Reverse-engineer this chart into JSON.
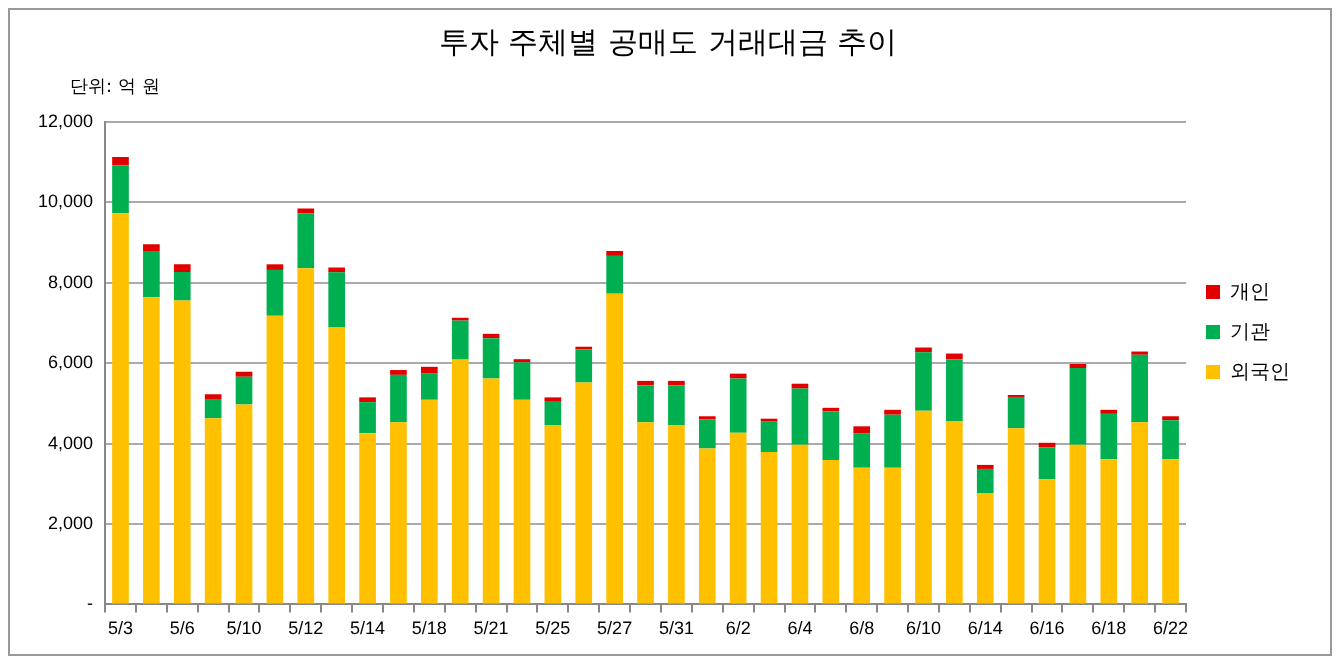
{
  "chart_data": {
    "type": "bar",
    "title": "투자 주체별 공매도 거래대금 추이",
    "annotations": [
      "단위: 억 원"
    ],
    "categories": [
      "5/3",
      null,
      "5/6",
      null,
      "5/10",
      null,
      "5/12",
      null,
      "5/14",
      null,
      "5/18",
      null,
      "5/21",
      null,
      "5/25",
      null,
      "5/27",
      null,
      "5/31",
      null,
      "6/2",
      null,
      "6/4",
      null,
      "6/8",
      null,
      "6/10",
      null,
      "6/14",
      null,
      "6/16",
      null,
      "6/18",
      null,
      "6/22"
    ],
    "stacked": true,
    "legend": "right",
    "grid": "y",
    "ylim": [
      0,
      12000
    ],
    "yticks": [
      {
        "value": 0,
        "label": "-"
      },
      {
        "value": 2000,
        "label": "2,000"
      },
      {
        "value": 4000,
        "label": "4,000"
      },
      {
        "value": 6000,
        "label": "6,000"
      },
      {
        "value": 8000,
        "label": "8,000"
      },
      {
        "value": 10000,
        "label": "10,000"
      },
      {
        "value": 12000,
        "label": "12,000"
      }
    ],
    "series": [
      {
        "name": "외국인",
        "color": "#ffc000",
        "values": [
          9730,
          7640,
          7560,
          4630,
          4970,
          7180,
          8360,
          6890,
          4260,
          4530,
          5090,
          6090,
          5620,
          5090,
          4460,
          5520,
          7730,
          4530,
          4460,
          3880,
          4270,
          3790,
          3970,
          3590,
          3400,
          3400,
          4820,
          4560,
          2770,
          4380,
          3110,
          3970,
          3610,
          4530,
          3610
        ]
      },
      {
        "name": "기관",
        "color": "#00b050",
        "values": [
          1190,
          1150,
          710,
          460,
          690,
          1140,
          1370,
          1370,
          770,
          1180,
          650,
          970,
          1000,
          930,
          580,
          820,
          940,
          920,
          990,
          720,
          1350,
          770,
          1400,
          1210,
          860,
          1320,
          1450,
          1540,
          600,
          780,
          800,
          1910,
          1130,
          1680,
          970
        ]
      },
      {
        "name": "개인",
        "color": "#e00000",
        "values": [
          210,
          170,
          190,
          140,
          130,
          140,
          120,
          120,
          120,
          120,
          170,
          70,
          110,
          80,
          110,
          70,
          120,
          110,
          110,
          80,
          120,
          60,
          120,
          90,
          170,
          120,
          120,
          140,
          100,
          50,
          110,
          100,
          100,
          80,
          100
        ]
      }
    ]
  }
}
